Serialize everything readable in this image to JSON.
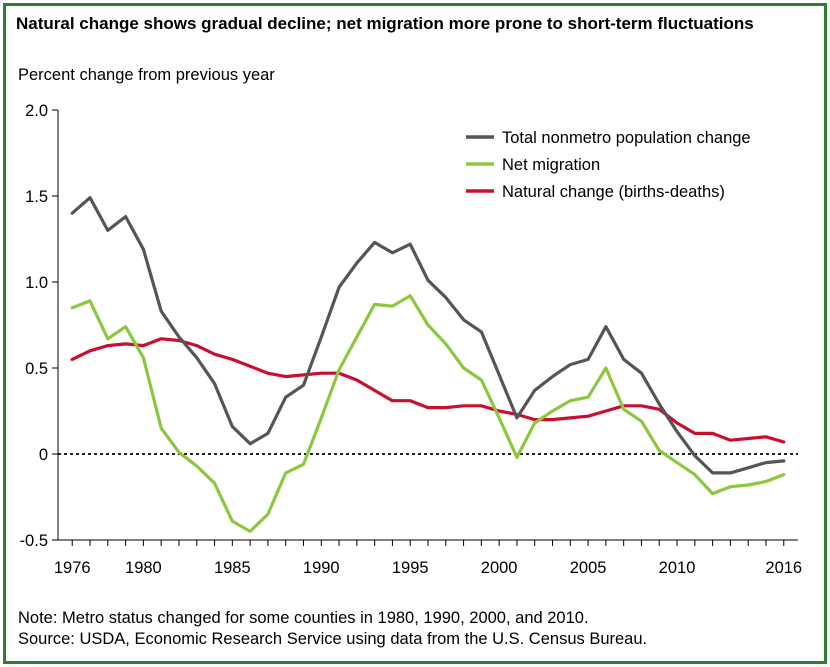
{
  "chart_data": {
    "type": "line",
    "title": "Natural change shows gradual decline; net migration more prone to short-term fluctuations",
    "ylabel": "Percent change from previous year",
    "xlabel": "",
    "xlim": [
      1975.2,
      2016.8
    ],
    "ylim": [
      -0.5,
      2.0
    ],
    "yticks": [
      2.0,
      1.5,
      1.0,
      0.5,
      0,
      -0.5
    ],
    "ytick_labels": [
      "2.0",
      "1.5",
      "1.0",
      "0.5",
      "0",
      "-0.5"
    ],
    "xticks": [
      1976,
      1980,
      1985,
      1990,
      1995,
      2000,
      2005,
      2010,
      2016
    ],
    "xtick_labels": [
      "1976",
      "1980",
      "1985",
      "1990",
      "1995",
      "2000",
      "2005",
      "2010",
      "2016"
    ],
    "x": [
      1976,
      1977,
      1978,
      1979,
      1980,
      1981,
      1982,
      1983,
      1984,
      1985,
      1986,
      1987,
      1988,
      1989,
      1990,
      1991,
      1992,
      1993,
      1994,
      1995,
      1996,
      1997,
      1998,
      1999,
      2000,
      2001,
      2002,
      2003,
      2004,
      2005,
      2006,
      2007,
      2008,
      2009,
      2010,
      2011,
      2012,
      2013,
      2014,
      2015,
      2016
    ],
    "series": [
      {
        "name": "Total nonmetro population change",
        "color": "#555555",
        "values": [
          1.4,
          1.49,
          1.3,
          1.38,
          1.19,
          0.83,
          0.68,
          0.56,
          0.41,
          0.16,
          0.06,
          0.12,
          0.33,
          0.4,
          0.68,
          0.97,
          1.11,
          1.23,
          1.17,
          1.22,
          1.01,
          0.91,
          0.78,
          0.71,
          0.46,
          0.21,
          0.37,
          0.45,
          0.52,
          0.55,
          0.74,
          0.55,
          0.47,
          0.29,
          0.13,
          -0.01,
          -0.11,
          -0.11,
          -0.08,
          -0.05,
          -0.04
        ]
      },
      {
        "name": "Net migration",
        "color": "#8dc63f",
        "values": [
          0.85,
          0.89,
          0.67,
          0.74,
          0.56,
          0.15,
          0.01,
          -0.07,
          -0.17,
          -0.39,
          -0.45,
          -0.35,
          -0.11,
          -0.06,
          0.21,
          0.49,
          0.68,
          0.87,
          0.86,
          0.92,
          0.75,
          0.64,
          0.5,
          0.43,
          0.21,
          -0.02,
          0.18,
          0.25,
          0.31,
          0.33,
          0.5,
          0.26,
          0.19,
          0.02,
          -0.05,
          -0.12,
          -0.23,
          -0.19,
          -0.18,
          -0.16,
          -0.12
        ]
      },
      {
        "name": "Natural change (births-deaths)",
        "color": "#c8102e",
        "values": [
          0.55,
          0.6,
          0.63,
          0.64,
          0.63,
          0.67,
          0.66,
          0.63,
          0.58,
          0.55,
          0.51,
          0.47,
          0.45,
          0.46,
          0.47,
          0.47,
          0.43,
          0.37,
          0.31,
          0.31,
          0.27,
          0.27,
          0.28,
          0.28,
          0.25,
          0.23,
          0.2,
          0.2,
          0.21,
          0.22,
          0.25,
          0.28,
          0.28,
          0.26,
          0.18,
          0.12,
          0.12,
          0.08,
          0.09,
          0.1,
          0.07
        ]
      }
    ],
    "reference_line": {
      "y": 0,
      "style": "dotted"
    },
    "legend_position": "top-right",
    "grid": false,
    "note": "Note: Metro status changed for some counties in 1980, 1990, 2000, and 2010.",
    "source": "Source: USDA, Economic Research Service using data from the U.S. Census Bureau."
  }
}
